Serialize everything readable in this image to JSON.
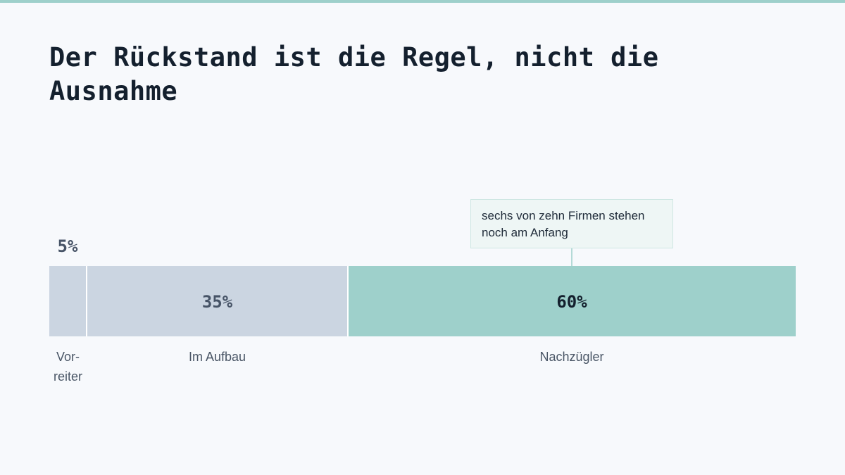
{
  "title": "Der Rückstand ist die Regel, nicht die Ausnahme",
  "callout": {
    "text": "sechs von zehn Firmen stehen noch am Anfang",
    "target_category": "Nachzügler"
  },
  "colors": {
    "vorreiter": "#cbd5e1",
    "im_aufbau": "#cbd5e1",
    "nachzuegler": "#9ed0cb",
    "value_muted": "#475467",
    "value_highlight": "#14202e"
  },
  "chart_data": {
    "type": "bar",
    "orientation": "horizontal-stacked",
    "categories": [
      "Vorreiter",
      "Im Aufbau",
      "Nachzügler"
    ],
    "display_labels": [
      [
        "Vor-",
        "reiter"
      ],
      [
        "Im Aufbau"
      ],
      [
        "Nachzügler"
      ]
    ],
    "values": [
      5,
      35,
      60
    ],
    "value_labels": [
      "5%",
      "35%",
      "60%"
    ],
    "unit": "%",
    "xlim": [
      0,
      100
    ],
    "highlight": "Nachzügler",
    "grid": false,
    "legend": "none"
  }
}
